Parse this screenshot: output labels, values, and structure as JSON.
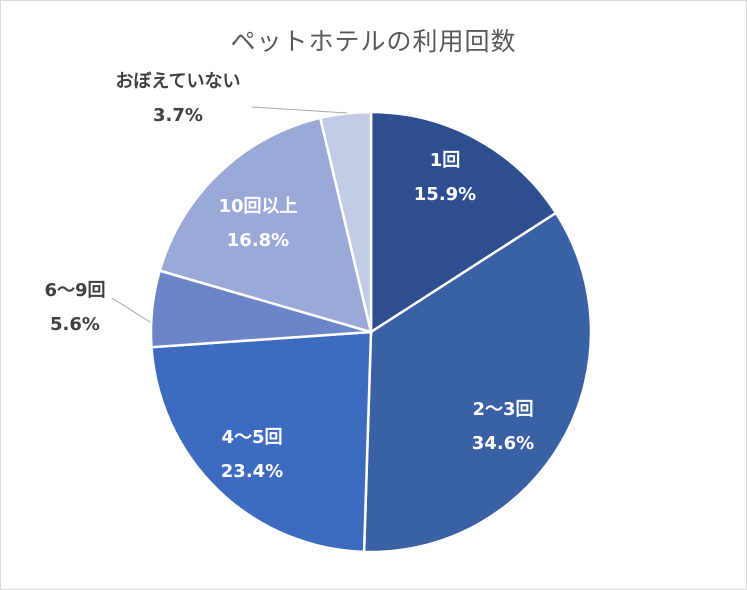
{
  "chart_data": {
    "type": "pie",
    "title": "ペットホテルの利用回数",
    "start_angle_deg": 0,
    "direction": "clockwise",
    "slices": [
      {
        "label": "1回",
        "value": 15.9,
        "value_label": "15.9%",
        "color": "#2e4f8f",
        "label_placement": "inside"
      },
      {
        "label": "2〜3回",
        "value": 34.6,
        "value_label": "34.6%",
        "color": "#3a60a6",
        "label_placement": "inside"
      },
      {
        "label": "4〜5回",
        "value": 23.4,
        "value_label": "23.4%",
        "color": "#3d6bbf",
        "label_placement": "inside"
      },
      {
        "label": "6〜9回",
        "value": 5.6,
        "value_label": "5.6%",
        "color": "#6b85c8",
        "label_placement": "outside"
      },
      {
        "label": "10回以上",
        "value": 16.8,
        "value_label": "16.8%",
        "color": "#9aa9d8",
        "label_placement": "inside"
      },
      {
        "label": "おぼえていない",
        "value": 3.7,
        "value_label": "3.7%",
        "color": "#c3cbe6",
        "label_placement": "outside"
      }
    ],
    "legend": "none"
  }
}
